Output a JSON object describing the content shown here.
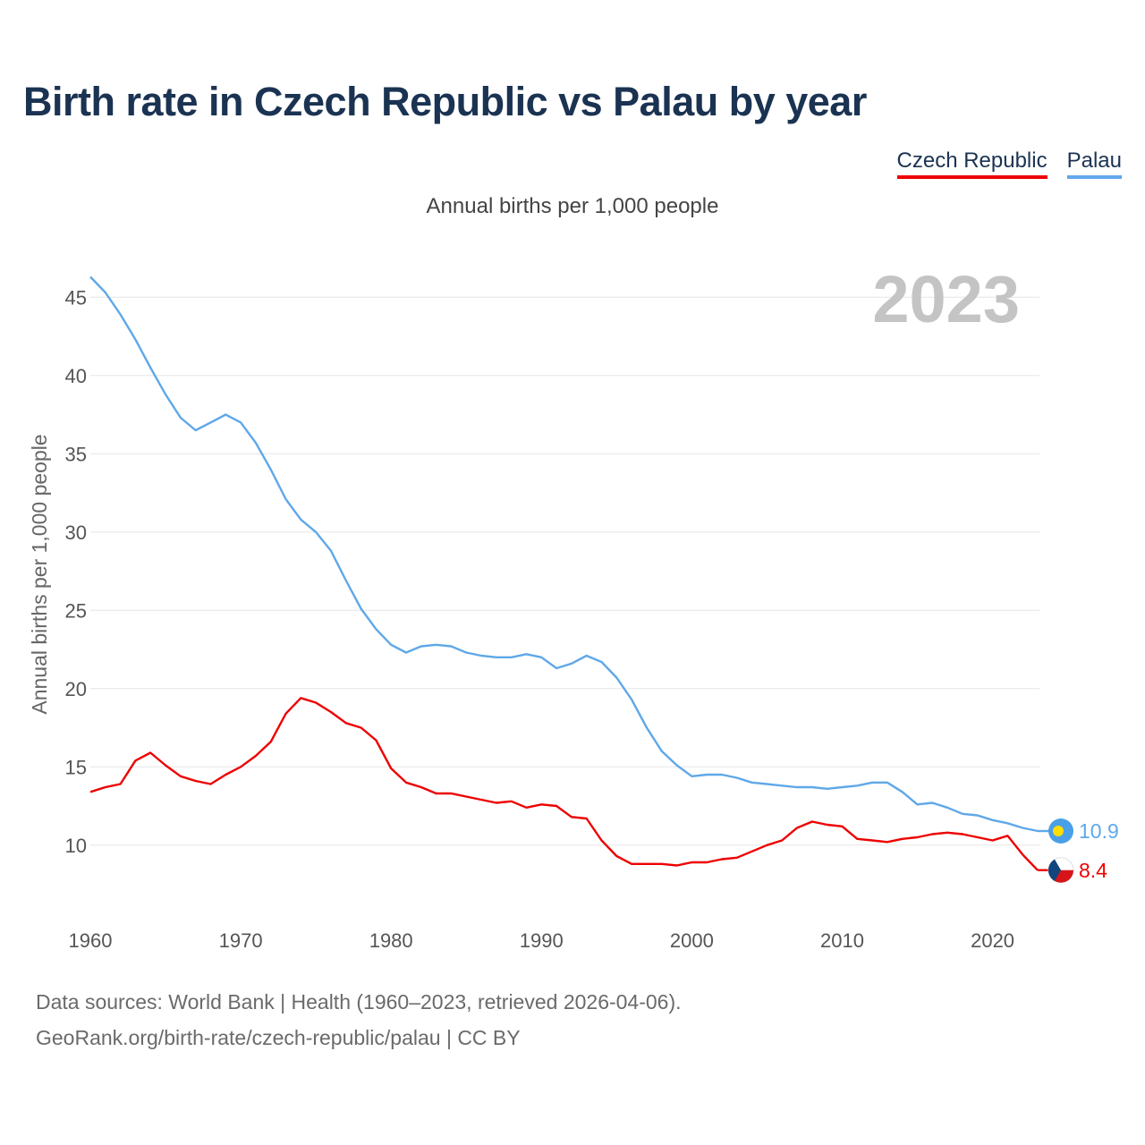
{
  "title": "Birth rate in Czech Republic vs Palau by year",
  "subtitle": "Annual births per 1,000 people",
  "year_overlay": "2023",
  "legend": [
    {
      "label": "Czech Republic",
      "color": "#ee0000"
    },
    {
      "label": "Palau",
      "color": "#5fa8e8"
    }
  ],
  "footer": {
    "line1": "Data sources: World Bank | Health (1960–2023, retrieved 2026-04-06).",
    "line2": "GeoRank.org/birth-rate/czech-republic/palau | CC BY"
  },
  "chart_data": {
    "type": "line",
    "title": "Birth rate in Czech Republic vs Palau by year",
    "ylabel": "Annual births per 1,000 people",
    "xlabel": "",
    "xlim": [
      1960,
      2023
    ],
    "ylim": [
      6.5,
      46.5
    ],
    "x_ticks": [
      "1960",
      "1970",
      "1980",
      "1990",
      "2000",
      "2010",
      "2020"
    ],
    "y_ticks": [
      "10",
      "15",
      "20",
      "25",
      "30",
      "35",
      "40",
      "45"
    ],
    "x": [
      1960,
      1961,
      1962,
      1963,
      1964,
      1965,
      1966,
      1967,
      1968,
      1969,
      1970,
      1971,
      1972,
      1973,
      1974,
      1975,
      1976,
      1977,
      1978,
      1979,
      1980,
      1981,
      1982,
      1983,
      1984,
      1985,
      1986,
      1987,
      1988,
      1989,
      1990,
      1991,
      1992,
      1993,
      1994,
      1995,
      1996,
      1997,
      1998,
      1999,
      2000,
      2001,
      2002,
      2003,
      2004,
      2005,
      2006,
      2007,
      2008,
      2009,
      2010,
      2011,
      2012,
      2013,
      2014,
      2015,
      2016,
      2017,
      2018,
      2019,
      2020,
      2021,
      2022,
      2023
    ],
    "series": [
      {
        "name": "Palau",
        "color": "#5fa8e8",
        "end_label": "10.9",
        "values": [
          46.3,
          45.3,
          43.9,
          42.3,
          40.5,
          38.8,
          37.3,
          36.5,
          37.0,
          37.5,
          37.0,
          35.7,
          34.0,
          32.1,
          30.8,
          30.0,
          28.8,
          26.9,
          25.1,
          23.8,
          22.8,
          22.3,
          22.7,
          22.8,
          22.7,
          22.3,
          22.1,
          22.0,
          22.0,
          22.2,
          22.0,
          21.3,
          21.6,
          22.1,
          21.7,
          20.7,
          19.3,
          17.5,
          16.0,
          15.1,
          14.4,
          14.5,
          14.5,
          14.3,
          14.0,
          13.9,
          13.8,
          13.7,
          13.7,
          13.6,
          13.7,
          13.8,
          14.0,
          14.0,
          13.4,
          12.6,
          12.7,
          12.4,
          12.0,
          11.9,
          11.6,
          11.4,
          11.1,
          10.9
        ]
      },
      {
        "name": "Czech Republic",
        "color": "#ee0000",
        "end_label": "8.4",
        "values": [
          13.4,
          13.7,
          13.9,
          15.4,
          15.9,
          15.1,
          14.4,
          14.1,
          13.9,
          14.5,
          15.0,
          15.7,
          16.6,
          18.4,
          19.4,
          19.1,
          18.5,
          17.8,
          17.5,
          16.7,
          14.9,
          14.0,
          13.7,
          13.3,
          13.3,
          13.1,
          12.9,
          12.7,
          12.8,
          12.4,
          12.6,
          12.5,
          11.8,
          11.7,
          10.3,
          9.3,
          8.8,
          8.8,
          8.8,
          8.7,
          8.9,
          8.9,
          9.1,
          9.2,
          9.6,
          10.0,
          10.3,
          11.1,
          11.5,
          11.3,
          11.2,
          10.4,
          10.3,
          10.2,
          10.4,
          10.5,
          10.7,
          10.8,
          10.7,
          10.5,
          10.3,
          10.6,
          9.4,
          8.4
        ]
      }
    ]
  }
}
